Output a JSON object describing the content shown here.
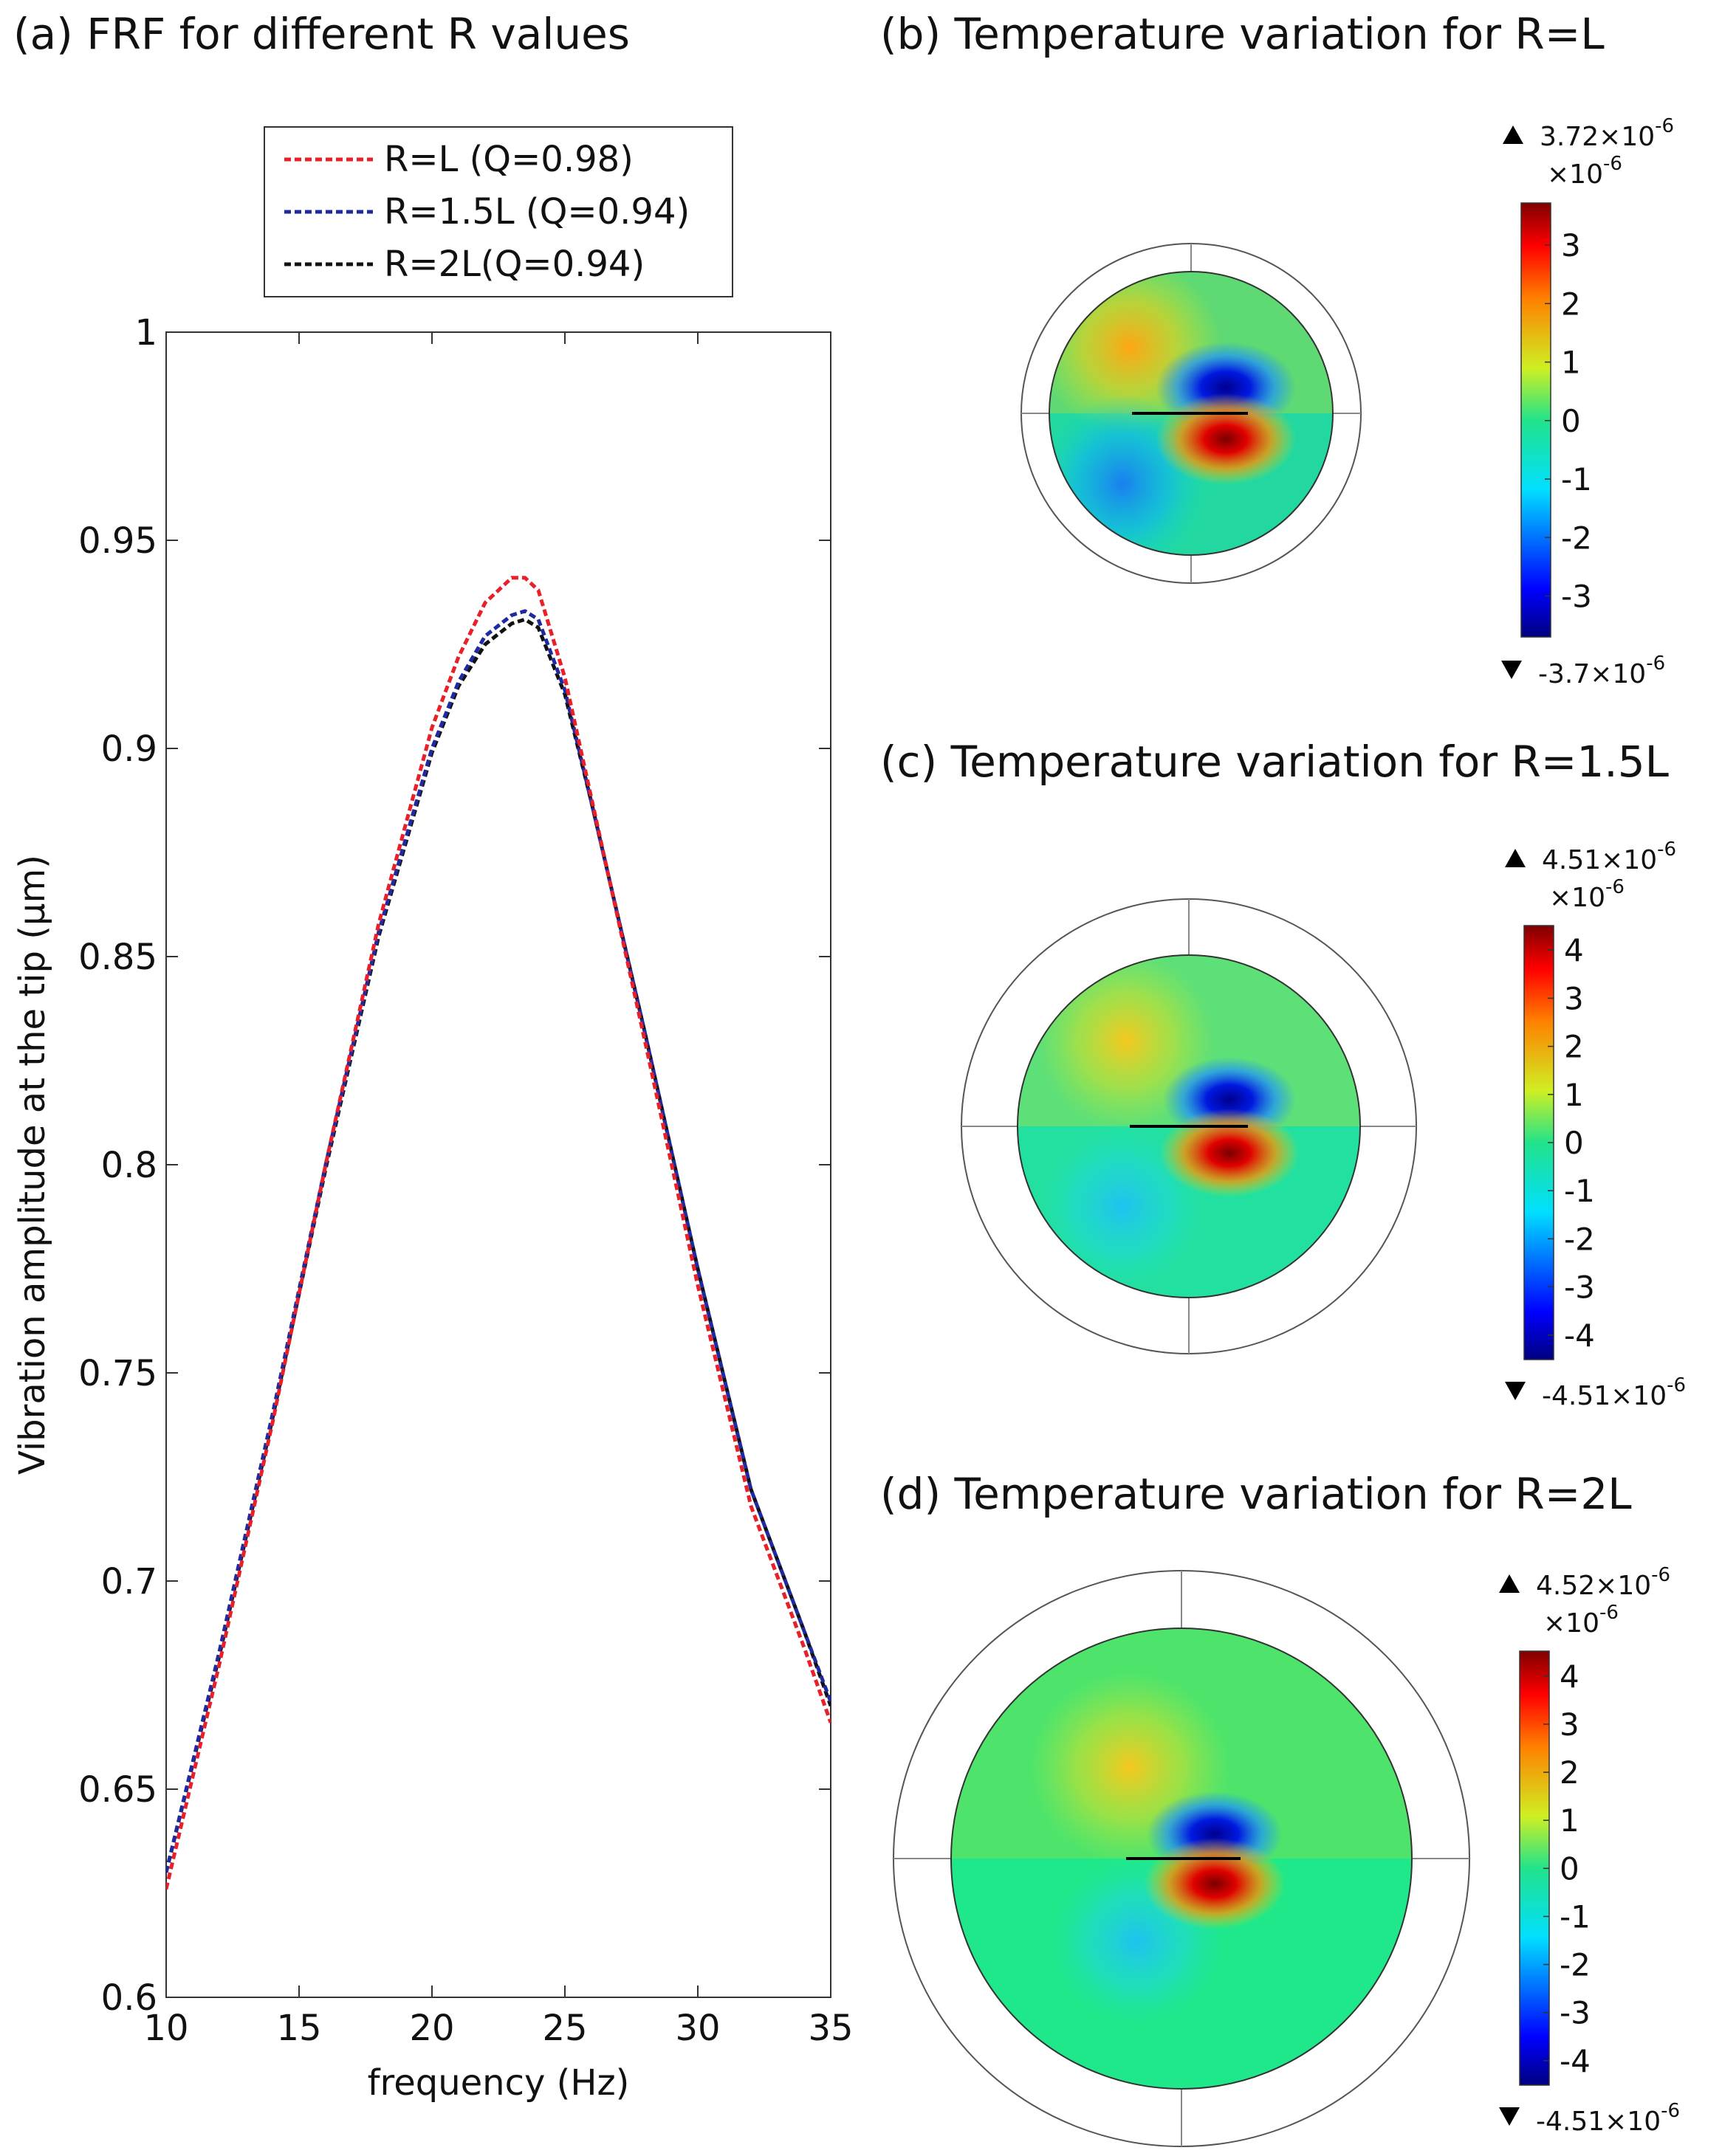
{
  "panels": {
    "a_title": "(a) FRF for different R values",
    "b_title": "(b) Temperature variation for R=L",
    "c_title": "(c) Temperature variation for R=1.5L",
    "d_title": "(d) Temperature variation for R=2L"
  },
  "chart_data": [
    {
      "type": "line",
      "title": "(a) FRF for different R values",
      "xlabel": "frequency (Hz)",
      "ylabel": "Vibration amplitude at the tip (μm)",
      "xlim": [
        10,
        35
      ],
      "ylim": [
        0.6,
        1.0
      ],
      "xticks": [
        10,
        15,
        20,
        25,
        30,
        35
      ],
      "xtick_labels": [
        "10",
        "15",
        "20",
        "25",
        "30",
        "35"
      ],
      "yticks": [
        0.6,
        0.65,
        0.7,
        0.75,
        0.8,
        0.85,
        0.9,
        0.95,
        1.0
      ],
      "ytick_labels": [
        "0.6",
        "0.65",
        "0.7",
        "0.75",
        "0.8",
        "0.85",
        "0.9",
        "0.95",
        "1"
      ],
      "legend_position": "top",
      "x": [
        10,
        12,
        14,
        16,
        18,
        20,
        21,
        22,
        23,
        23.5,
        24,
        25,
        26,
        28,
        30,
        32,
        34,
        35
      ],
      "series": [
        {
          "name": "R=L (Q=0.98)",
          "color": "#e8202a",
          "values": [
            0.626,
            0.68,
            0.738,
            0.8,
            0.858,
            0.905,
            0.922,
            0.935,
            0.941,
            0.941,
            0.938,
            0.917,
            0.888,
            0.83,
            0.771,
            0.718,
            0.684,
            0.666
          ]
        },
        {
          "name": "R=1.5L (Q=0.94)",
          "color": "#1f2a9e",
          "values": [
            0.63,
            0.683,
            0.74,
            0.8,
            0.856,
            0.9,
            0.916,
            0.927,
            0.932,
            0.933,
            0.931,
            0.914,
            0.887,
            0.832,
            0.775,
            0.722,
            0.688,
            0.671
          ]
        },
        {
          "name": "R=2L(Q=0.94)",
          "color": "#111111",
          "values": [
            0.63,
            0.682,
            0.739,
            0.799,
            0.855,
            0.899,
            0.915,
            0.925,
            0.93,
            0.931,
            0.929,
            0.913,
            0.887,
            0.832,
            0.775,
            0.722,
            0.688,
            0.67
          ]
        }
      ]
    },
    {
      "type": "heatmap",
      "title": "(b) Temperature variation for R=L",
      "colorbar": {
        "max_label": "3.72×10",
        "min_label": "-3.7×10",
        "exp": "-6",
        "scale_label": "×10",
        "range": [
          -3.7,
          3.72
        ],
        "ticks": [
          "3",
          "2",
          "1",
          "0",
          "-1",
          "-2",
          "-3"
        ]
      }
    },
    {
      "type": "heatmap",
      "title": "(c) Temperature variation for R=1.5L",
      "colorbar": {
        "max_label": "4.51×10",
        "min_label": "-4.51×10",
        "exp": "-6",
        "scale_label": "×10",
        "range": [
          -4.51,
          4.51
        ],
        "ticks": [
          "4",
          "3",
          "2",
          "1",
          "0",
          "-1",
          "-2",
          "-3",
          "-4"
        ]
      }
    },
    {
      "type": "heatmap",
      "title": "(d) Temperature variation for R=2L",
      "colorbar": {
        "max_label": "4.52×10",
        "min_label": "-4.51×10",
        "exp": "-6",
        "scale_label": "×10",
        "range": [
          -4.51,
          4.52
        ],
        "ticks": [
          "4",
          "3",
          "2",
          "1",
          "0",
          "-1",
          "-2",
          "-3",
          "-4"
        ]
      }
    }
  ]
}
